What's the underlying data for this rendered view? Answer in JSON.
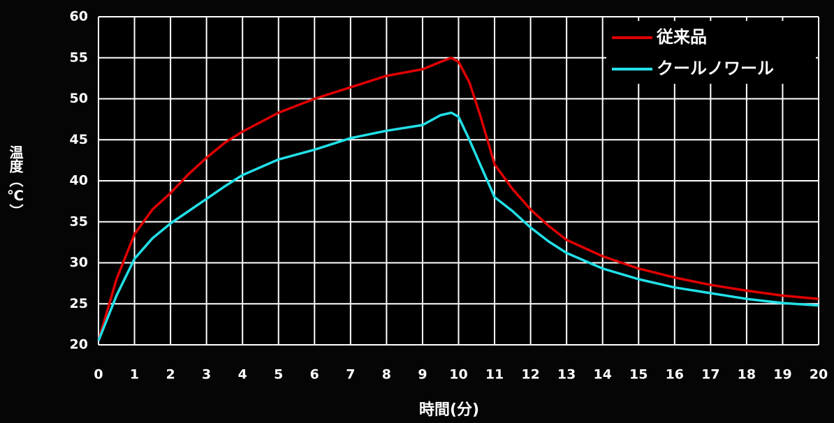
{
  "chart_data": {
    "type": "line",
    "x_label": "時間(分)",
    "y_label": "温度（℃）",
    "x": [
      0,
      0.5,
      1,
      1.5,
      2,
      2.5,
      3,
      3.5,
      4,
      5,
      6,
      7,
      8,
      9,
      9.5,
      9.8,
      10,
      10.3,
      10.6,
      11,
      11.5,
      12,
      12.5,
      13,
      14,
      15,
      16,
      17,
      18,
      19,
      20
    ],
    "series": [
      {
        "name": "従来品",
        "color": "#e00000",
        "values": [
          20.5,
          28,
          33.5,
          36.5,
          38.5,
          40.8,
          42.8,
          44.6,
          46,
          48.3,
          50,
          51.4,
          52.8,
          53.6,
          54.5,
          55,
          54.5,
          52,
          48,
          42,
          39,
          36.5,
          34.5,
          32.8,
          30.8,
          29.3,
          28.2,
          27.3,
          26.6,
          26,
          25.6
        ]
      },
      {
        "name": "クールノワール",
        "color": "#22e0e8",
        "values": [
          20.5,
          26,
          30.5,
          33,
          34.8,
          36.3,
          37.8,
          39.3,
          40.7,
          42.6,
          43.8,
          45.2,
          46.1,
          46.8,
          48,
          48.3,
          47.8,
          45,
          42,
          38,
          36.3,
          34.3,
          32.6,
          31.2,
          29.3,
          28,
          27,
          26.3,
          25.6,
          25.1,
          24.8
        ]
      }
    ],
    "xlim": [
      0,
      20
    ],
    "xticks": [
      0,
      1,
      2,
      3,
      4,
      5,
      6,
      7,
      8,
      9,
      10,
      11,
      12,
      13,
      14,
      15,
      16,
      17,
      18,
      19,
      20
    ],
    "ylim": [
      20,
      60
    ],
    "yticks": [
      20,
      25,
      30,
      35,
      40,
      45,
      50,
      55,
      60
    ],
    "grid": true,
    "legend": "upper right"
  }
}
